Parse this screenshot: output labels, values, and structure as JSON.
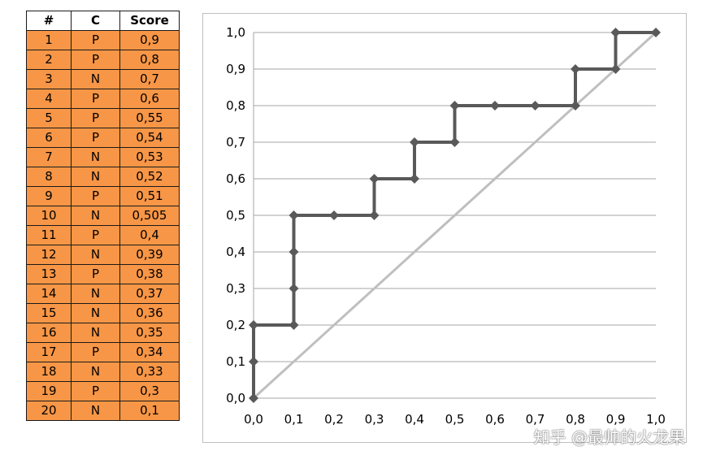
{
  "table": {
    "headers": [
      "#",
      "C",
      "Score"
    ],
    "rows": [
      [
        "1",
        "P",
        "0,9"
      ],
      [
        "2",
        "P",
        "0,8"
      ],
      [
        "3",
        "N",
        "0,7"
      ],
      [
        "4",
        "P",
        "0,6"
      ],
      [
        "5",
        "P",
        "0,55"
      ],
      [
        "6",
        "P",
        "0,54"
      ],
      [
        "7",
        "N",
        "0,53"
      ],
      [
        "8",
        "N",
        "0,52"
      ],
      [
        "9",
        "P",
        "0,51"
      ],
      [
        "10",
        "N",
        "0,505"
      ],
      [
        "11",
        "P",
        "0,4"
      ],
      [
        "12",
        "N",
        "0,39"
      ],
      [
        "13",
        "P",
        "0,38"
      ],
      [
        "14",
        "N",
        "0,37"
      ],
      [
        "15",
        "N",
        "0,36"
      ],
      [
        "16",
        "N",
        "0,35"
      ],
      [
        "17",
        "P",
        "0,34"
      ],
      [
        "18",
        "N",
        "0,33"
      ],
      [
        "19",
        "P",
        "0,3"
      ],
      [
        "20",
        "N",
        "0,1"
      ]
    ]
  },
  "chart_data": {
    "type": "line",
    "title": "",
    "xlabel": "",
    "ylabel": "",
    "xlim": [
      0,
      1
    ],
    "ylim": [
      0,
      1
    ],
    "grid": "horizontal",
    "legend": "none",
    "x_ticks": [
      "0,0",
      "0,1",
      "0,2",
      "0,3",
      "0,4",
      "0,5",
      "0,6",
      "0,7",
      "0,8",
      "0,9",
      "1,0"
    ],
    "y_ticks": [
      "0,0",
      "0,1",
      "0,2",
      "0,3",
      "0,4",
      "0,5",
      "0,6",
      "0,7",
      "0,8",
      "0,9",
      "1,0"
    ],
    "series": [
      {
        "color": "#595959",
        "marker": "diamond",
        "points": [
          [
            0.0,
            0.0
          ],
          [
            0.0,
            0.1
          ],
          [
            0.0,
            0.2
          ],
          [
            0.1,
            0.2
          ],
          [
            0.1,
            0.3
          ],
          [
            0.1,
            0.4
          ],
          [
            0.1,
            0.5
          ],
          [
            0.2,
            0.5
          ],
          [
            0.3,
            0.5
          ],
          [
            0.3,
            0.6
          ],
          [
            0.4,
            0.6
          ],
          [
            0.4,
            0.7
          ],
          [
            0.5,
            0.7
          ],
          [
            0.5,
            0.8
          ],
          [
            0.6,
            0.8
          ],
          [
            0.7,
            0.8
          ],
          [
            0.8,
            0.8
          ],
          [
            0.8,
            0.9
          ],
          [
            0.9,
            0.9
          ],
          [
            0.9,
            1.0
          ],
          [
            1.0,
            1.0
          ]
        ]
      },
      {
        "color": "#bfbfbf",
        "marker": "none",
        "points": [
          [
            0.0,
            0.0
          ],
          [
            1.0,
            1.0
          ]
        ]
      }
    ]
  },
  "watermark": "知乎 @最帅的火龙果",
  "colors": {
    "table_fill": "#f79646",
    "roc_line": "#595959",
    "diagonal_line": "#bfbfbf",
    "gridline": "#a6a6a6"
  }
}
